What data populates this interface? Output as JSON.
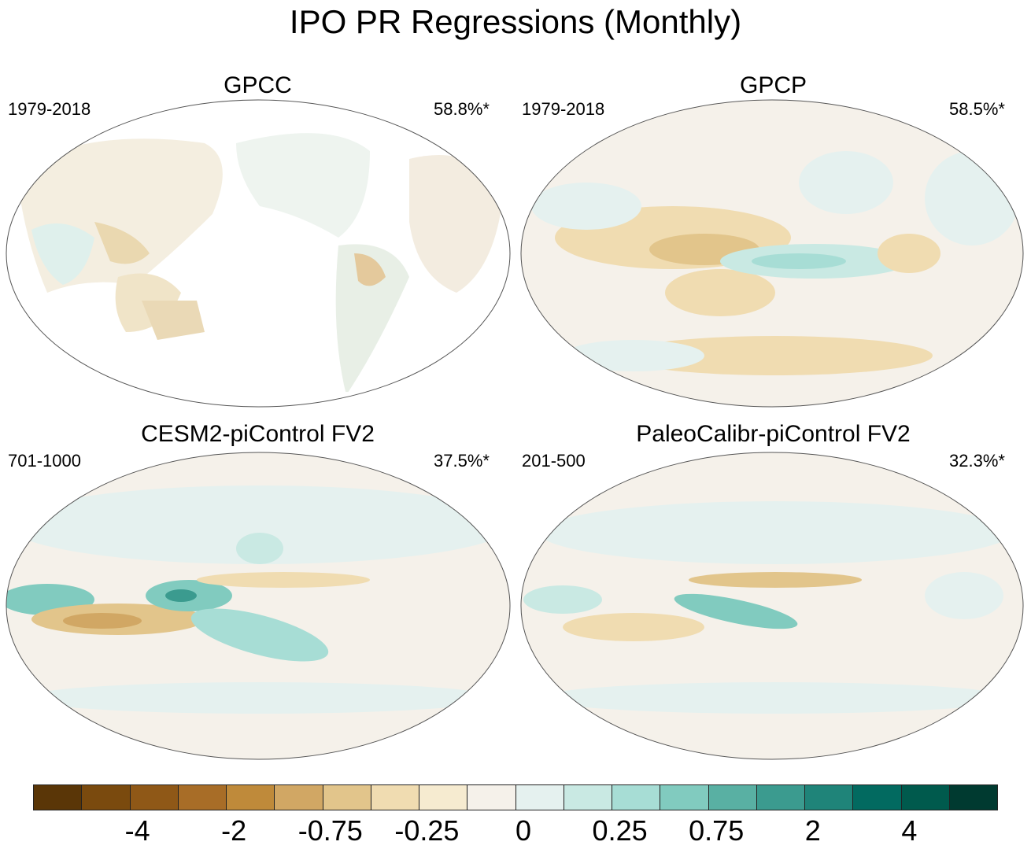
{
  "title": "IPO PR Regressions (Monthly)",
  "panels": [
    {
      "title": "GPCC",
      "period": "1979-2018",
      "variance": "58.8%*"
    },
    {
      "title": "GPCP",
      "period": "1979-2018",
      "variance": "58.5%*"
    },
    {
      "title": "CESM2-piControl FV2",
      "period": "701-1000",
      "variance": "37.5%*"
    },
    {
      "title": "PaleoCalibr-piControl FV2",
      "period": "201-500",
      "variance": "32.3%*"
    }
  ],
  "colorbar": {
    "colors": [
      "#5a3607",
      "#7a4a0e",
      "#8f5817",
      "#a86d27",
      "#bf8a3a",
      "#d1a764",
      "#e2c58b",
      "#f0dcb1",
      "#f6ebd0",
      "#f5f1ea",
      "#e5f1ef",
      "#c9e9e3",
      "#a7ddd5",
      "#81cbbf",
      "#59b0a3",
      "#3b9b8f",
      "#1f8479",
      "#026a60",
      "#005a4d",
      "#003a30"
    ],
    "labels": [
      "-4",
      "-2",
      "-0.75",
      "-0.25",
      "0",
      "0.25",
      "0.75",
      "2",
      "4"
    ]
  },
  "colors": {
    "ocean_neutral": "#f6f2ea",
    "land_mask": "#ffffff",
    "coastline": "#6b6b6b"
  }
}
